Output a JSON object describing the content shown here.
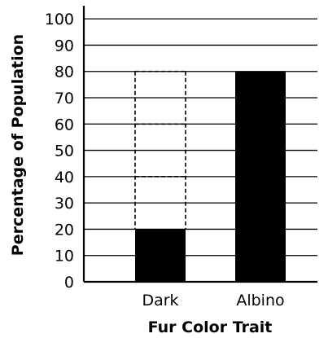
{
  "chart_data": {
    "type": "bar",
    "categories": [
      "Dark",
      "Albino"
    ],
    "values": [
      20,
      80
    ],
    "dashed_outline": {
      "category": "Dark",
      "top": 80,
      "dividers": [
        40,
        60
      ]
    },
    "title": "",
    "xlabel": "Fur Color Trait",
    "ylabel": "Percentage of Population",
    "ylim": [
      0,
      100
    ],
    "yticks": [
      0,
      10,
      20,
      30,
      40,
      50,
      60,
      70,
      80,
      90,
      100
    ],
    "grid": true,
    "legend": "none",
    "colors": {
      "bar": "#000000",
      "grid": "#000000",
      "background": "#ffffff"
    }
  }
}
